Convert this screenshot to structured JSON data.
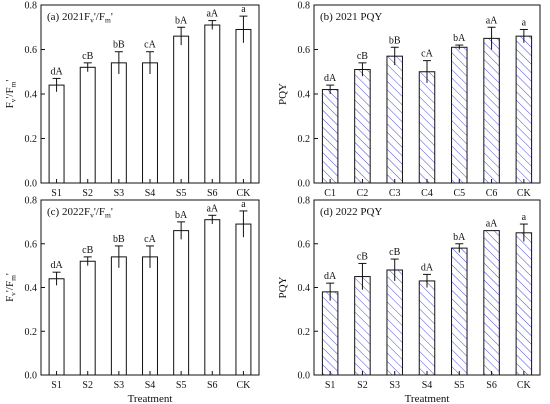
{
  "chart_data": [
    {
      "type": "bar",
      "panel_title": "(a)  2021F",
      "panel_title_sub": "v",
      "panel_title_mid": "'/F",
      "panel_title_sub2": "m",
      "panel_title_end": "'",
      "ylabel": "F",
      "ylabel_sub": "v",
      "ylabel_mid": "'/F",
      "ylabel_sub2": "m",
      "ylabel_end": "'",
      "xlabel": "",
      "categories": [
        "S1",
        "S2",
        "S3",
        "S4",
        "S5",
        "S6",
        "CK"
      ],
      "values": [
        0.44,
        0.52,
        0.54,
        0.54,
        0.66,
        0.71,
        0.69
      ],
      "errors": [
        0.03,
        0.02,
        0.05,
        0.05,
        0.04,
        0.02,
        0.06
      ],
      "labels": [
        "dA",
        "cB",
        "bB",
        "cA",
        "bA",
        "aA",
        "a"
      ],
      "fill": "none",
      "ylim": [
        0,
        0.8
      ],
      "yticks": [
        "0.0",
        "0.2",
        "0.4",
        "0.6",
        "0.8"
      ]
    },
    {
      "type": "bar",
      "panel_title": "(b)  2021 PQY",
      "ylabel": "PQY",
      "xlabel": "",
      "categories": [
        "C1",
        "C2",
        "C3",
        "C4",
        "C5",
        "C6",
        "CK"
      ],
      "values": [
        0.42,
        0.51,
        0.57,
        0.5,
        0.61,
        0.65,
        0.66
      ],
      "errors": [
        0.02,
        0.03,
        0.04,
        0.05,
        0.01,
        0.05,
        0.03
      ],
      "labels": [
        "dA",
        "cB",
        "bB",
        "cA",
        "bA",
        "aA",
        "a"
      ],
      "fill": "hatch",
      "ylim": [
        0,
        0.8
      ],
      "yticks": [
        "0.0",
        "0.2",
        "0.4",
        "0.6",
        "0.8"
      ]
    },
    {
      "type": "bar",
      "panel_title": "(c)  2022F",
      "panel_title_sub": "v",
      "panel_title_mid": "'/F",
      "panel_title_sub2": "m",
      "panel_title_end": "'",
      "ylabel": "F",
      "ylabel_sub": "v",
      "ylabel_mid": "'/F",
      "ylabel_sub2": "m",
      "ylabel_end": "'",
      "xlabel": "Treatment",
      "categories": [
        "S1",
        "S2",
        "S3",
        "S4",
        "S5",
        "S6",
        "CK"
      ],
      "values": [
        0.44,
        0.52,
        0.54,
        0.54,
        0.66,
        0.71,
        0.69
      ],
      "errors": [
        0.03,
        0.02,
        0.05,
        0.05,
        0.04,
        0.02,
        0.06
      ],
      "labels": [
        "dA",
        "cB",
        "bB",
        "cA",
        "bA",
        "aA",
        "a"
      ],
      "fill": "none",
      "ylim": [
        0,
        0.8
      ],
      "yticks": [
        "0.0",
        "0.2",
        "0.4",
        "0.6",
        "0.8"
      ]
    },
    {
      "type": "bar",
      "panel_title": "(d)  2022 PQY",
      "ylabel": "PQY",
      "xlabel": "Treatment",
      "categories": [
        "S1",
        "S2",
        "S3",
        "S4",
        "S5",
        "S6",
        "CK"
      ],
      "values": [
        0.38,
        0.45,
        0.48,
        0.43,
        0.58,
        0.66,
        0.65
      ],
      "errors": [
        0.04,
        0.06,
        0.05,
        0.03,
        0.02,
        0.0,
        0.04
      ],
      "labels": [
        "dA",
        "cB",
        "cB",
        "dA",
        "bA",
        "aA",
        "a"
      ],
      "fill": "hatch",
      "ylim": [
        0,
        0.8
      ],
      "yticks": [
        "0.0",
        "0.2",
        "0.4",
        "0.6",
        "0.8"
      ]
    }
  ],
  "colors": {
    "axis": "#111111",
    "hatch": "#4a4adf",
    "bar_outline": "#111111"
  }
}
